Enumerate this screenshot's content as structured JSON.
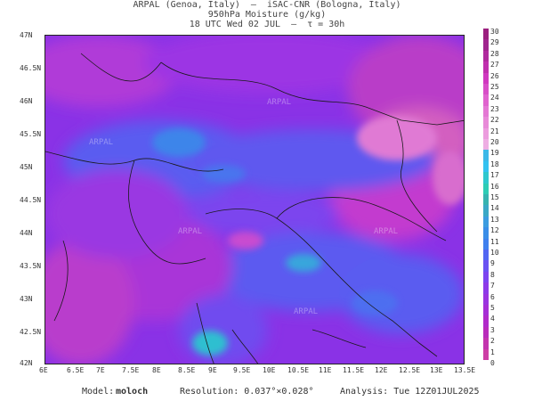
{
  "header": {
    "line1": "ARPAL (Genoa, Italy)  —  iSAC-CNR (Bologna, Italy)",
    "line2": "950hPa Moisture (g/kg)",
    "line3": "18 UTC Wed 02 JUL  —  τ = 30h"
  },
  "map": {
    "y_ticks": [
      "47N",
      "46.5N",
      "46N",
      "45.5N",
      "45N",
      "44.5N",
      "44N",
      "43.5N",
      "43N",
      "42.5N",
      "42N"
    ],
    "x_ticks": [
      "6E",
      "6.5E",
      "7E",
      "7.5E",
      "8E",
      "8.5E",
      "9E",
      "9.5E",
      "10E",
      "10.5E",
      "11E",
      "11.5E",
      "12E",
      "12.5E",
      "13E",
      "13.5E"
    ],
    "watermark": "ARPAL"
  },
  "colorbar": {
    "labels": [
      "30",
      "29",
      "28",
      "27",
      "26",
      "25",
      "24",
      "23",
      "22",
      "21",
      "20",
      "19",
      "18",
      "17",
      "16",
      "15",
      "14",
      "13",
      "12",
      "11",
      "10",
      "9",
      "8",
      "7",
      "6",
      "5",
      "4",
      "3",
      "2",
      "1",
      "0"
    ],
    "colors": [
      "#9b1f7f",
      "#a0258e",
      "#b02a9e",
      "#c02fae",
      "#d038c0",
      "#d84ec8",
      "#e063cf",
      "#e478d4",
      "#e88ad8",
      "#ec9cde",
      "#eeaee3",
      "#3cb8e8",
      "#33c2f0",
      "#2ec8ce",
      "#2dccb5",
      "#36b3b0",
      "#3aa8c6",
      "#3c9ce0",
      "#3a8ee8",
      "#3f80ee",
      "#5266f2",
      "#6a52f2",
      "#7c44f0",
      "#8d3ae8",
      "#9a34e0",
      "#a62ed6",
      "#b12aca",
      "#b92bbb",
      "#c334ae",
      "#cd3ea5"
    ]
  },
  "footer": {
    "model_label": "Model:",
    "model_value": "moloch",
    "resolution": "Resolution: 0.037°×0.028°",
    "analysis": "Analysis: Tue 12Z01JUL2025"
  }
}
